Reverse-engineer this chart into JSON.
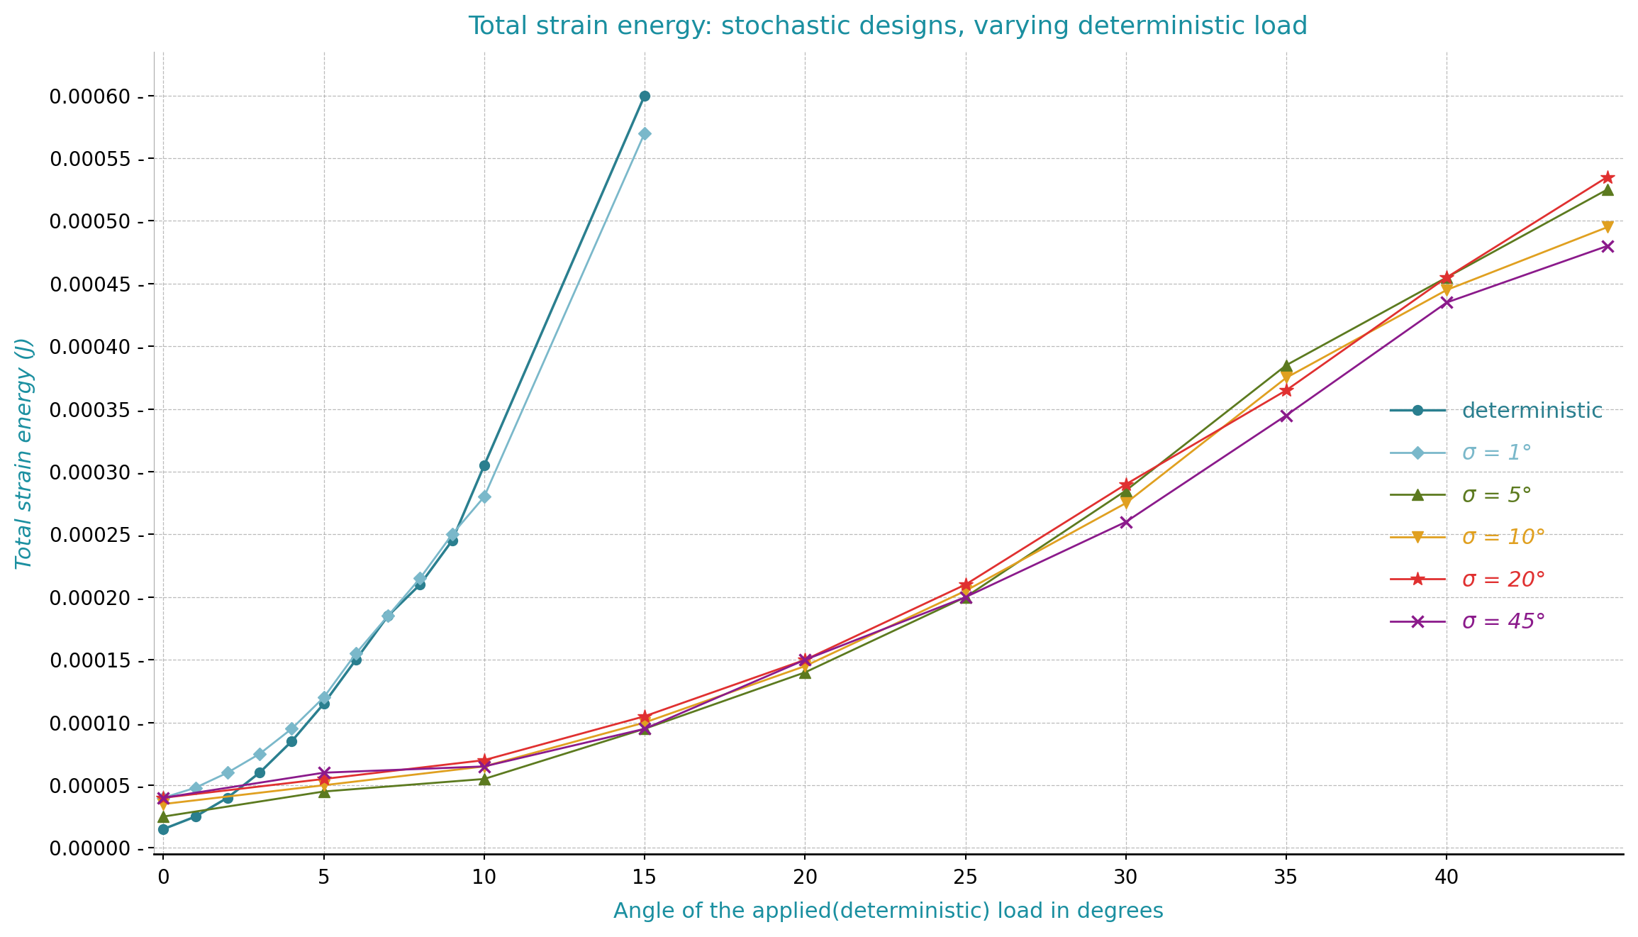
{
  "title": "Total strain energy: stochastic designs, varying deterministic load",
  "xlabel": "Angle of the applied(deterministic) load in degrees",
  "ylabel": "Total strain energy (J)",
  "background_color": "#ffffff",
  "title_color": "#1a8fa0",
  "xlabel_color": "#1a8fa0",
  "ylabel_color": "#1a8fa0",
  "grid_color": "#aaaaaa",
  "xlim": [
    -0.3,
    45.5
  ],
  "ylim": [
    -5e-06,
    0.000635
  ],
  "xticks": [
    0,
    5,
    10,
    15,
    20,
    25,
    30,
    35,
    40
  ],
  "yticks": [
    0.0,
    5e-05,
    0.0001,
    0.00015,
    0.0002,
    0.00025,
    0.0003,
    0.00035,
    0.0004,
    0.00045,
    0.0005,
    0.00055,
    0.0006
  ],
  "series": [
    {
      "label": "deterministic",
      "color": "#2a7f8f",
      "marker": "o",
      "markersize": 10,
      "linewidth": 2.5,
      "markeredgewidth": 1.0,
      "x": [
        0,
        1,
        2,
        3,
        4,
        5,
        6,
        7,
        8,
        9,
        10,
        15
      ],
      "y": [
        1.5e-05,
        2.5e-05,
        4e-05,
        6e-05,
        8.5e-05,
        0.000115,
        0.00015,
        0.000185,
        0.00021,
        0.000245,
        0.000305,
        0.0006
      ]
    },
    {
      "label": "σ = 1°",
      "color": "#7ab8ca",
      "marker": "D",
      "markersize": 9,
      "linewidth": 2.0,
      "markeredgewidth": 1.0,
      "x": [
        0,
        1,
        2,
        3,
        4,
        5,
        6,
        7,
        8,
        9,
        10,
        15
      ],
      "y": [
        4e-05,
        4.8e-05,
        6e-05,
        7.5e-05,
        9.5e-05,
        0.00012,
        0.000155,
        0.000185,
        0.000215,
        0.00025,
        0.00028,
        0.00057
      ]
    },
    {
      "label": "σ = 5°",
      "color": "#5c7a1f",
      "marker": "^",
      "markersize": 11,
      "linewidth": 2.0,
      "markeredgewidth": 1.0,
      "x": [
        0,
        5,
        10,
        15,
        20,
        25,
        30,
        35,
        40,
        45
      ],
      "y": [
        2.5e-05,
        4.5e-05,
        5.5e-05,
        9.5e-05,
        0.00014,
        0.0002,
        0.000285,
        0.000385,
        0.000455,
        0.000525
      ]
    },
    {
      "label": "σ = 10°",
      "color": "#e0a020",
      "marker": "v",
      "markersize": 11,
      "linewidth": 2.0,
      "markeredgewidth": 1.0,
      "x": [
        0,
        5,
        10,
        15,
        20,
        25,
        30,
        35,
        40,
        45
      ],
      "y": [
        3.5e-05,
        5e-05,
        6.5e-05,
        0.0001,
        0.000145,
        0.000205,
        0.000275,
        0.000375,
        0.000445,
        0.000495
      ]
    },
    {
      "label": "σ = 20°",
      "color": "#e03030",
      "marker": "*",
      "markersize": 15,
      "linewidth": 2.0,
      "markeredgewidth": 1.0,
      "x": [
        0,
        5,
        10,
        15,
        20,
        25,
        30,
        35,
        40,
        45
      ],
      "y": [
        4e-05,
        5.5e-05,
        7e-05,
        0.000105,
        0.00015,
        0.00021,
        0.00029,
        0.000365,
        0.000455,
        0.000535
      ]
    },
    {
      "label": "σ = 45°",
      "color": "#8b1a8b",
      "marker": "x",
      "markersize": 12,
      "linewidth": 2.0,
      "markeredgewidth": 2.5,
      "x": [
        0,
        5,
        10,
        15,
        20,
        25,
        30,
        35,
        40,
        45
      ],
      "y": [
        4e-05,
        6e-05,
        6.5e-05,
        9.5e-05,
        0.00015,
        0.0002,
        0.00026,
        0.000345,
        0.000435,
        0.00048
      ]
    }
  ],
  "legend_label_colors": [
    "#2a7f8f",
    "#7ab8ca",
    "#5c7a1f",
    "#e0a020",
    "#e03030",
    "#8b1a8b"
  ],
  "legend_italic": [
    false,
    true,
    true,
    true,
    true,
    true
  ],
  "legend_fontsize": 22,
  "title_fontsize": 26,
  "label_fontsize": 22,
  "tick_fontsize": 20
}
